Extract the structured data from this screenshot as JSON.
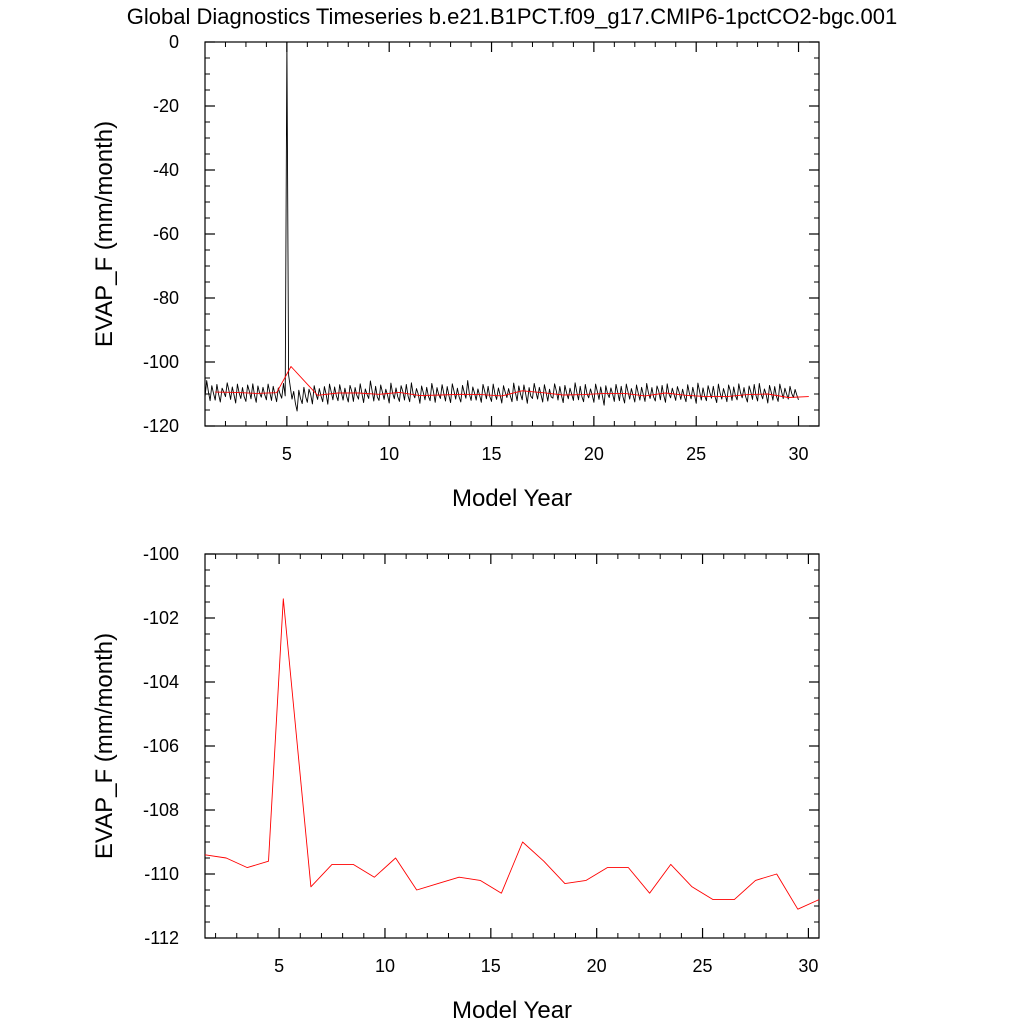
{
  "title": "Global Diagnostics Timeseries b.e21.B1PCT.f09_g17.CMIP6-1pctCO2-bgc.001",
  "colors": {
    "monthly": "#000000",
    "annual": "#ff0000",
    "axes": "#000000"
  },
  "chart_data": [
    {
      "type": "line",
      "xlabel": "Model Year",
      "ylabel": "EVAP_F (mm/month)",
      "xlim": [
        1,
        31
      ],
      "ylim": [
        -120,
        0
      ],
      "xticks": [
        5,
        10,
        15,
        20,
        25,
        30
      ],
      "xtick_labels": [
        "5",
        "10",
        "15",
        "20",
        "25",
        "30"
      ],
      "yticks": [
        0,
        -20,
        -40,
        -60,
        -80,
        -100,
        -120
      ],
      "ytick_labels": [
        "0",
        "-20",
        "-40",
        "-60",
        "-80",
        "-100",
        "-120"
      ],
      "series": [
        {
          "x_start": 1.0,
          "x_step": 0.0833333,
          "values": [
            -111.0,
            -105.8,
            -109.3,
            -112.1,
            -107.4,
            -109.8,
            -111.9,
            -107.0,
            -110.1,
            -112.5,
            -108.2,
            -109.4,
            -110.8,
            -106.5,
            -108.9,
            -111.7,
            -107.8,
            -110.3,
            -112.8,
            -106.9,
            -109.6,
            -111.4,
            -108.0,
            -110.9,
            -112.3,
            -107.2,
            -109.1,
            -111.5,
            -106.8,
            -110.4,
            -112.6,
            -107.5,
            -109.7,
            -111.0,
            -107.9,
            -110.2,
            -111.8,
            -106.9,
            -109.5,
            -112.0,
            -107.6,
            -110.1,
            -112.4,
            -108.1,
            -109.9,
            -111.3,
            -106.7,
            -110.6,
            -0.2,
            -104.1,
            -107.8,
            -111.6,
            -109.2,
            -112.9,
            -115.3,
            -108.8,
            -111.4,
            -113.0,
            -107.9,
            -110.8,
            -112.6,
            -108.5,
            -110.2,
            -113.1,
            -107.4,
            -109.9,
            -111.7,
            -108.3,
            -110.6,
            -112.4,
            -107.7,
            -110.0,
            -113.2,
            -106.9,
            -109.3,
            -111.8,
            -107.8,
            -110.5,
            -112.1,
            -107.1,
            -109.6,
            -111.9,
            -108.2,
            -110.7,
            -112.5,
            -107.3,
            -109.1,
            -112.3,
            -108.0,
            -110.4,
            -111.6,
            -106.8,
            -109.8,
            -112.7,
            -108.4,
            -110.1,
            -111.4,
            -105.9,
            -109.0,
            -112.2,
            -107.6,
            -110.9,
            -112.0,
            -107.2,
            -109.4,
            -111.7,
            -108.5,
            -110.3,
            -112.8,
            -106.6,
            -109.7,
            -111.5,
            -108.1,
            -110.8,
            -112.3,
            -107.4,
            -109.2,
            -111.9,
            -107.0,
            -110.6,
            -112.4,
            -106.5,
            -109.9,
            -111.2,
            -108.3,
            -110.0,
            -112.9,
            -107.5,
            -109.6,
            -111.8,
            -107.9,
            -110.7,
            -112.1,
            -106.7,
            -109.3,
            -112.6,
            -108.0,
            -110.2,
            -111.4,
            -107.1,
            -109.8,
            -112.2,
            -107.7,
            -110.5,
            -112.7,
            -106.8,
            -109.1,
            -111.6,
            -108.2,
            -110.9,
            -112.5,
            -107.3,
            -109.5,
            -111.3,
            -105.8,
            -110.1,
            -112.0,
            -107.8,
            -109.7,
            -111.9,
            -108.4,
            -110.4,
            -112.6,
            -107.0,
            -109.2,
            -111.5,
            -107.6,
            -110.8,
            -112.3,
            -106.9,
            -109.9,
            -111.7,
            -108.1,
            -110.3,
            -112.8,
            -107.4,
            -109.4,
            -111.1,
            -108.3,
            -110.6,
            -112.4,
            -106.6,
            -109.6,
            -112.1,
            -107.5,
            -110.0,
            -111.8,
            -107.2,
            -109.8,
            -112.9,
            -108.0,
            -110.7,
            -111.4,
            -106.7,
            -109.3,
            -111.6,
            -107.9,
            -110.2,
            -112.5,
            -107.1,
            -109.5,
            -112.2,
            -108.5,
            -110.9,
            -111.3,
            -106.8,
            -109.0,
            -111.9,
            -107.7,
            -110.5,
            -112.7,
            -107.3,
            -109.7,
            -111.5,
            -108.2,
            -110.1,
            -112.0,
            -106.5,
            -109.4,
            -111.8,
            -107.6,
            -110.8,
            -112.4,
            -107.0,
            -109.9,
            -111.2,
            -108.4,
            -110.3,
            -112.6,
            -106.9,
            -109.2,
            -111.7,
            -107.8,
            -110.6,
            -113.5,
            -107.4,
            -109.8,
            -111.1,
            -108.1,
            -110.0,
            -112.3,
            -107.0,
            -109.5,
            -112.1,
            -107.6,
            -110.8,
            -112.8,
            -106.9,
            -109.3,
            -111.6,
            -108.3,
            -110.4,
            -112.5,
            -107.2,
            -109.7,
            -111.9,
            -107.9,
            -110.2,
            -112.3,
            -106.7,
            -109.6,
            -111.4,
            -108.0,
            -110.9,
            -112.2,
            -107.5,
            -109.1,
            -111.8,
            -107.3,
            -110.5,
            -112.6,
            -106.8,
            -109.9,
            -111.2,
            -108.2,
            -110.1,
            -112.0,
            -107.7,
            -109.4,
            -111.7,
            -108.5,
            -110.7,
            -112.4,
            -107.1,
            -109.8,
            -111.5,
            -107.9,
            -110.3,
            -112.9,
            -106.6,
            -109.2,
            -111.9,
            -108.1,
            -110.6,
            -112.1,
            -107.4,
            -109.5,
            -111.3,
            -107.6,
            -110.8,
            -112.7,
            -106.9,
            -109.7,
            -111.6,
            -108.3,
            -110.2,
            -112.4,
            -107.2,
            -109.0,
            -112.0,
            -107.8,
            -110.5,
            -111.8,
            -106.8,
            -109.6,
            -111.2,
            -108.0,
            -110.9,
            -112.5,
            -107.5,
            -109.3,
            -111.7,
            -107.0,
            -110.4,
            -112.2,
            -106.7,
            -109.9,
            -111.5,
            -108.4,
            -110.1,
            -112.8,
            -107.3,
            -109.4,
            -111.9,
            -107.7,
            -110.7,
            -112.3,
            -106.9,
            -109.2,
            -111.4,
            -108.2,
            -110.0,
            -111.6,
            -107.6,
            -109.8,
            -111.1,
            -108.6,
            -110.3,
            -111.8
          ]
        },
        {
          "x": [
            1.5,
            2.5,
            3.5,
            4.5,
            5.2,
            6.5,
            7.5,
            8.5,
            9.5,
            10.5,
            11.5,
            12.5,
            13.5,
            14.5,
            15.5,
            16.5,
            17.5,
            18.5,
            19.5,
            20.5,
            21.5,
            22.5,
            23.5,
            24.5,
            25.5,
            26.5,
            27.5,
            28.5,
            29.5,
            30.5
          ],
          "values": [
            -109.4,
            -109.5,
            -109.8,
            -109.6,
            -101.4,
            -110.4,
            -109.7,
            -109.7,
            -110.1,
            -109.5,
            -110.5,
            -110.3,
            -110.1,
            -110.2,
            -110.6,
            -109.0,
            -109.6,
            -110.3,
            -110.2,
            -109.8,
            -109.8,
            -110.6,
            -109.7,
            -110.4,
            -110.8,
            -110.8,
            -110.2,
            -110.0,
            -111.1,
            -110.8
          ]
        }
      ]
    },
    {
      "type": "line",
      "xlabel": "Model Year",
      "ylabel": "EVAP_F (mm/month)",
      "xlim": [
        1.5,
        30.5
      ],
      "ylim": [
        -112,
        -100
      ],
      "xticks": [
        5,
        10,
        15,
        20,
        25,
        30
      ],
      "xtick_labels": [
        "5",
        "10",
        "15",
        "20",
        "25",
        "30"
      ],
      "yticks": [
        -100,
        -102,
        -104,
        -106,
        -108,
        -110,
        -112
      ],
      "ytick_labels": [
        "-100",
        "-102",
        "-104",
        "-106",
        "-108",
        "-110",
        "-112"
      ],
      "series": [
        {
          "x": [
            1.5,
            2.5,
            3.5,
            4.5,
            5.2,
            6.5,
            7.5,
            8.5,
            9.5,
            10.5,
            11.5,
            12.5,
            13.5,
            14.5,
            15.5,
            16.5,
            17.5,
            18.5,
            19.5,
            20.5,
            21.5,
            22.5,
            23.5,
            24.5,
            25.5,
            26.5,
            27.5,
            28.5,
            29.5,
            30.5
          ],
          "values": [
            -109.4,
            -109.5,
            -109.8,
            -109.6,
            -101.4,
            -110.4,
            -109.7,
            -109.7,
            -110.1,
            -109.5,
            -110.5,
            -110.3,
            -110.1,
            -110.2,
            -110.6,
            -109.0,
            -109.6,
            -110.3,
            -110.2,
            -109.8,
            -109.8,
            -110.6,
            -109.7,
            -110.4,
            -110.8,
            -110.8,
            -110.2,
            -110.0,
            -111.1,
            -110.8
          ]
        }
      ]
    }
  ]
}
